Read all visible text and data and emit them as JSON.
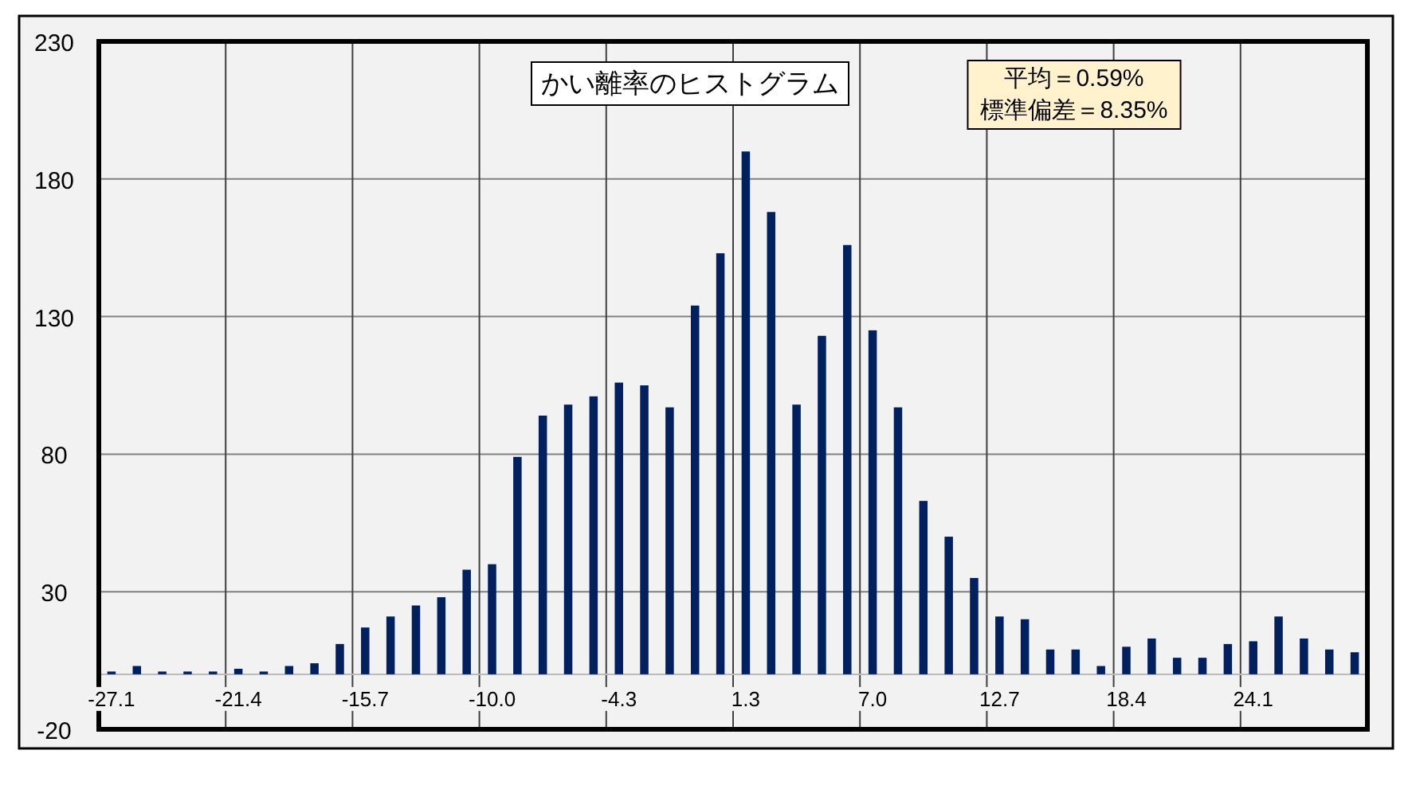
{
  "chart_data": {
    "type": "bar",
    "title": "かい離率のヒストグラム",
    "annotations": [
      "平均＝0.59%",
      "標準偏差＝8.35%"
    ],
    "categories": [
      "-27.1",
      null,
      null,
      null,
      null,
      "-21.4",
      null,
      null,
      null,
      null,
      "-15.7",
      null,
      null,
      null,
      null,
      "-10.0",
      null,
      null,
      null,
      null,
      "-4.3",
      null,
      null,
      null,
      null,
      "1.3",
      null,
      null,
      null,
      null,
      "7.0",
      null,
      null,
      null,
      null,
      "12.7",
      null,
      null,
      null,
      null,
      "18.4",
      null,
      null,
      null,
      null,
      "24.1",
      null,
      null,
      null,
      null
    ],
    "values": [
      1,
      3,
      1,
      1,
      1,
      2,
      1,
      3,
      4,
      11,
      17,
      21,
      25,
      28,
      38,
      40,
      79,
      94,
      98,
      101,
      106,
      105,
      97,
      134,
      153,
      190,
      168,
      98,
      123,
      156,
      125,
      97,
      63,
      50,
      35,
      21,
      20,
      9,
      9,
      3,
      10,
      13,
      6,
      6,
      11,
      12,
      21,
      13,
      9,
      8
    ],
    "color": "#002060",
    "ylim": [
      -20,
      230
    ],
    "yticks": [
      -20,
      30,
      80,
      130,
      180,
      230
    ],
    "grid": true
  }
}
